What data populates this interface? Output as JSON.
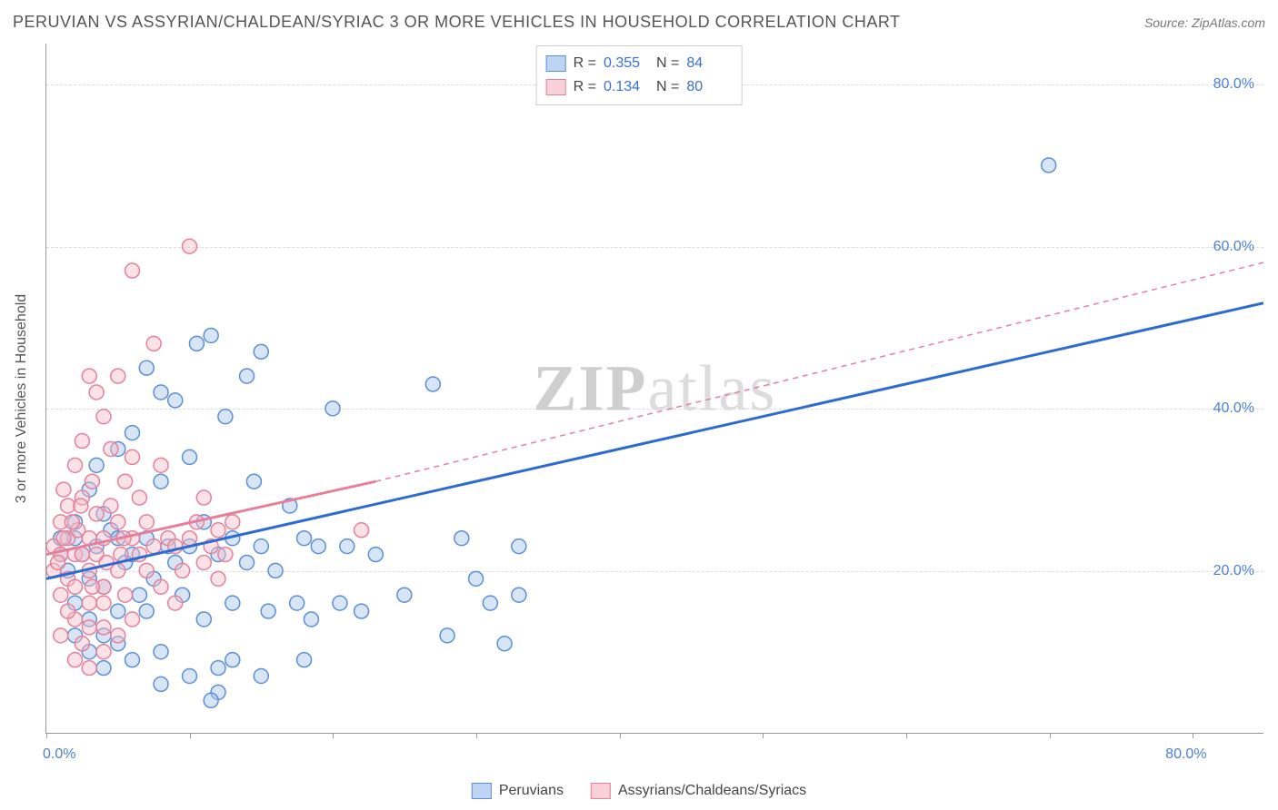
{
  "title": "PERUVIAN VS ASSYRIAN/CHALDEAN/SYRIAC 3 OR MORE VEHICLES IN HOUSEHOLD CORRELATION CHART",
  "source": "Source: ZipAtlas.com",
  "y_axis_title": "3 or more Vehicles in Household",
  "watermark_a": "ZIP",
  "watermark_b": "atlas",
  "chart": {
    "type": "scatter",
    "xlim": [
      0,
      85
    ],
    "ylim": [
      0,
      85
    ],
    "x_ticks": [
      0,
      10,
      20,
      30,
      40,
      50,
      60,
      70,
      80
    ],
    "x_tick_labels": {
      "0": "0.0%",
      "80": "80.0%"
    },
    "y_ticks": [
      20,
      40,
      60,
      80
    ],
    "y_tick_labels": {
      "20": "20.0%",
      "40": "40.0%",
      "60": "60.0%",
      "80": "80.0%"
    },
    "grid_color": "#dddddd",
    "axis_color": "#999999",
    "background_color": "#ffffff",
    "marker_radius": 8,
    "marker_opacity": 0.45,
    "series": {
      "blue": {
        "label": "Peruvians",
        "fill": "#a9c6ee",
        "stroke": "#5b8fd6",
        "R": "0.355",
        "N": "84",
        "trend": {
          "x1": 0,
          "y1": 19,
          "x2": 85,
          "y2": 53,
          "width": 3,
          "dash": "none"
        },
        "points": [
          [
            1,
            24
          ],
          [
            1,
            22
          ],
          [
            1.5,
            20
          ],
          [
            2,
            26
          ],
          [
            2,
            24
          ],
          [
            2,
            16
          ],
          [
            2.5,
            22
          ],
          [
            3,
            19
          ],
          [
            3,
            30
          ],
          [
            3,
            14
          ],
          [
            3.5,
            33
          ],
          [
            3.5,
            23
          ],
          [
            4,
            27
          ],
          [
            4,
            18
          ],
          [
            4,
            12
          ],
          [
            4.5,
            25
          ],
          [
            5,
            35
          ],
          [
            5,
            24
          ],
          [
            5,
            15
          ],
          [
            5.5,
            21
          ],
          [
            6,
            22
          ],
          [
            6,
            37
          ],
          [
            6.5,
            17
          ],
          [
            7,
            45
          ],
          [
            7,
            24
          ],
          [
            7,
            15
          ],
          [
            7.5,
            19
          ],
          [
            8,
            42
          ],
          [
            8,
            31
          ],
          [
            8,
            10
          ],
          [
            8.5,
            23
          ],
          [
            9,
            41
          ],
          [
            9,
            21
          ],
          [
            9.5,
            17
          ],
          [
            10,
            34
          ],
          [
            10,
            23
          ],
          [
            10.5,
            48
          ],
          [
            11,
            14
          ],
          [
            11,
            26
          ],
          [
            11.5,
            49
          ],
          [
            12,
            22
          ],
          [
            12,
            8
          ],
          [
            12.5,
            39
          ],
          [
            13,
            24
          ],
          [
            13,
            16
          ],
          [
            14,
            44
          ],
          [
            14,
            21
          ],
          [
            14.5,
            31
          ],
          [
            15,
            47
          ],
          [
            15,
            23
          ],
          [
            15.5,
            15
          ],
          [
            16,
            20
          ],
          [
            17,
            28
          ],
          [
            17.5,
            16
          ],
          [
            18,
            24
          ],
          [
            18.5,
            14
          ],
          [
            19,
            23
          ],
          [
            20,
            40
          ],
          [
            20.5,
            16
          ],
          [
            21,
            23
          ],
          [
            12,
            5
          ],
          [
            13,
            9
          ],
          [
            8,
            6
          ],
          [
            10,
            7
          ],
          [
            11.5,
            4
          ],
          [
            6,
            9
          ],
          [
            4,
            8
          ],
          [
            3,
            10
          ],
          [
            2,
            12
          ],
          [
            5,
            11
          ],
          [
            22,
            15
          ],
          [
            23,
            22
          ],
          [
            25,
            17
          ],
          [
            27,
            43
          ],
          [
            28,
            12
          ],
          [
            29,
            24
          ],
          [
            30,
            19
          ],
          [
            31,
            16
          ],
          [
            32,
            11
          ],
          [
            33,
            23
          ],
          [
            33,
            17
          ],
          [
            70,
            70
          ],
          [
            15,
            7
          ],
          [
            18,
            9
          ]
        ]
      },
      "pink": {
        "label": "Assyrians/Chaldeans/Syriacs",
        "fill": "#f4bfca",
        "stroke": "#e6809a",
        "R": "0.134",
        "N": "80",
        "trend_solid": {
          "x1": 0,
          "y1": 22,
          "x2": 23,
          "y2": 31,
          "width": 3
        },
        "trend_dash": {
          "x1": 23,
          "y1": 31,
          "x2": 85,
          "y2": 58,
          "width": 1.5,
          "dash": "6,5"
        },
        "points": [
          [
            0.5,
            23
          ],
          [
            0.5,
            20
          ],
          [
            1,
            26
          ],
          [
            1,
            22
          ],
          [
            1,
            17
          ],
          [
            1.2,
            30
          ],
          [
            1.5,
            24
          ],
          [
            1.5,
            19
          ],
          [
            1.5,
            28
          ],
          [
            2,
            22
          ],
          [
            2,
            33
          ],
          [
            2,
            18
          ],
          [
            2,
            14
          ],
          [
            2.2,
            25
          ],
          [
            2.5,
            36
          ],
          [
            2.5,
            22
          ],
          [
            2.5,
            29
          ],
          [
            3,
            44
          ],
          [
            3,
            20
          ],
          [
            3,
            24
          ],
          [
            3,
            16
          ],
          [
            3.2,
            31
          ],
          [
            3.5,
            42
          ],
          [
            3.5,
            27
          ],
          [
            3.5,
            22
          ],
          [
            4,
            39
          ],
          [
            4,
            24
          ],
          [
            4,
            18
          ],
          [
            4,
            13
          ],
          [
            4.5,
            35
          ],
          [
            4.5,
            28
          ],
          [
            5,
            26
          ],
          [
            5,
            20
          ],
          [
            5,
            44
          ],
          [
            5.2,
            22
          ],
          [
            5.5,
            31
          ],
          [
            5.5,
            17
          ],
          [
            6,
            57
          ],
          [
            6,
            24
          ],
          [
            6,
            34
          ],
          [
            6.5,
            22
          ],
          [
            6.5,
            29
          ],
          [
            7,
            20
          ],
          [
            7,
            26
          ],
          [
            7.5,
            48
          ],
          [
            7.5,
            23
          ],
          [
            8,
            33
          ],
          [
            8,
            18
          ],
          [
            8.5,
            24
          ],
          [
            9,
            23
          ],
          [
            9,
            16
          ],
          [
            9.5,
            20
          ],
          [
            10,
            60
          ],
          [
            10,
            24
          ],
          [
            10.5,
            26
          ],
          [
            11,
            21
          ],
          [
            11,
            29
          ],
          [
            11.5,
            23
          ],
          [
            12,
            25
          ],
          [
            12,
            19
          ],
          [
            12.5,
            22
          ],
          [
            13,
            26
          ],
          [
            2,
            9
          ],
          [
            2.5,
            11
          ],
          [
            3,
            8
          ],
          [
            4,
            10
          ],
          [
            5,
            12
          ],
          [
            6,
            14
          ],
          [
            1,
            12
          ],
          [
            1.5,
            15
          ],
          [
            3,
            13
          ],
          [
            4,
            16
          ],
          [
            0.8,
            21
          ],
          [
            1.2,
            24
          ],
          [
            1.8,
            26
          ],
          [
            2.4,
            28
          ],
          [
            3.2,
            18
          ],
          [
            4.2,
            21
          ],
          [
            5.4,
            24
          ],
          [
            22,
            25
          ]
        ]
      }
    }
  },
  "legend_top": {
    "R_label": "R =",
    "N_label": "N ="
  }
}
